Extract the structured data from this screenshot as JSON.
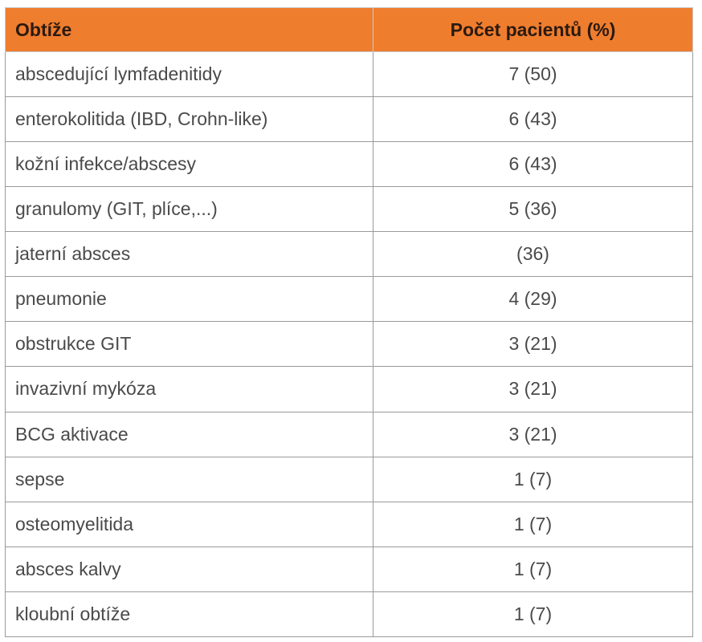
{
  "table": {
    "headers": {
      "col1": "Obtíže",
      "col2": "Počet pacientů (%)"
    },
    "rows": [
      {
        "name": "abscedující lymfadenitidy",
        "count": "7 (50)"
      },
      {
        "name": "enterokolitida (IBD, Crohn-like)",
        "count": "6 (43)"
      },
      {
        "name": "kožní infekce/abscesy",
        "count": "6 (43)"
      },
      {
        "name": "granulomy (GIT, plíce,...)",
        "count": "5 (36)"
      },
      {
        "name": "jaterní absces",
        "count": "(36)"
      },
      {
        "name": "pneumonie",
        "count": "4 (29)"
      },
      {
        "name": "obstrukce GIT",
        "count": "3 (21)"
      },
      {
        "name": "invazivní mykóza",
        "count": "3 (21)"
      },
      {
        "name": "BCG aktivace",
        "count": "3 (21)"
      },
      {
        "name": "sepse",
        "count": "1 (7)"
      },
      {
        "name": "osteomyelitida",
        "count": "1 (7)"
      },
      {
        "name": "absces kalvy",
        "count": "1 (7)"
      },
      {
        "name": "kloubní obtíže",
        "count": "1 (7)"
      }
    ]
  },
  "colors": {
    "header_bg": "#ef7d2e",
    "header_text": "#2b1a10",
    "cell_text": "#4a4a4a",
    "border": "#9a9a9a"
  }
}
